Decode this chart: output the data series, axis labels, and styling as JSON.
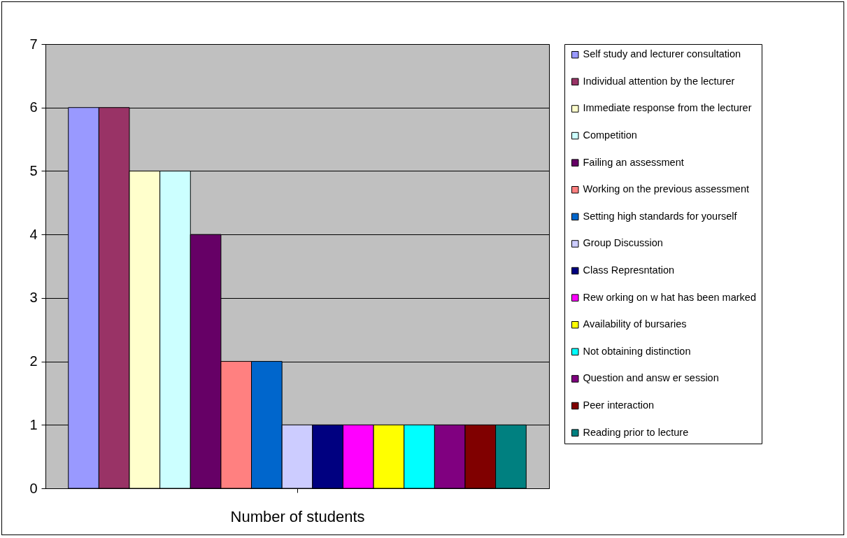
{
  "chart_data": {
    "type": "bar",
    "xlabel": "Number of students",
    "categories": [
      null
    ],
    "series": [
      {
        "name": "Self study and lecturer consultation",
        "color": "#9999ff",
        "values": [
          6
        ]
      },
      {
        "name": "Individual attention by the lecturer",
        "color": "#993366",
        "values": [
          6
        ]
      },
      {
        "name": "Immediate response from the lecturer",
        "color": "#ffffcc",
        "values": [
          5
        ]
      },
      {
        "name": "Competition",
        "color": "#ccffff",
        "values": [
          5
        ]
      },
      {
        "name": "Failing an assessment",
        "color": "#660066",
        "values": [
          4
        ]
      },
      {
        "name": "Working on the previous assessment",
        "color": "#ff8080",
        "values": [
          2
        ]
      },
      {
        "name": "Setting high standards for yourself",
        "color": "#0066cc",
        "values": [
          2
        ]
      },
      {
        "name": "Group Discussion",
        "color": "#ccccff",
        "values": [
          1
        ]
      },
      {
        "name": "Class Represntation",
        "color": "#000080",
        "values": [
          1
        ]
      },
      {
        "name": "Rew orking on w hat has been marked",
        "color": "#ff00ff",
        "values": [
          1
        ]
      },
      {
        "name": "Availability of bursaries",
        "color": "#ffff00",
        "values": [
          1
        ]
      },
      {
        "name": "Not obtaining distinction",
        "color": "#00ffff",
        "values": [
          1
        ]
      },
      {
        "name": "Question and answ er session",
        "color": "#800080",
        "values": [
          1
        ]
      },
      {
        "name": "Peer interaction",
        "color": "#800000",
        "values": [
          1
        ]
      },
      {
        "name": "Reading prior to lecture",
        "color": "#008080",
        "values": [
          1
        ]
      }
    ],
    "ylim": [
      0,
      7
    ],
    "yticks": [
      0,
      1,
      2,
      3,
      4,
      5,
      6,
      7
    ],
    "grid": "y",
    "legend": "right"
  }
}
